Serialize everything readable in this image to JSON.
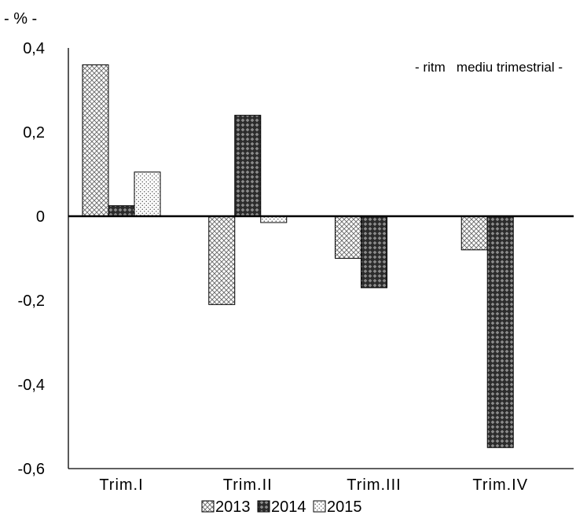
{
  "chart_data": {
    "type": "bar",
    "unit_label": "- % -",
    "annotation": "- ritm   mediu trimestrial -",
    "categories": [
      "Trim.I",
      "Trim.II",
      "Trim.III",
      "Trim.IV"
    ],
    "series": [
      {
        "name": "2013",
        "values": [
          0.36,
          -0.21,
          -0.1,
          -0.08
        ],
        "pattern": "light-diamond"
      },
      {
        "name": "2014",
        "values": [
          0.025,
          0.24,
          -0.17,
          -0.55
        ],
        "pattern": "dark-diamond"
      },
      {
        "name": "2015",
        "values": [
          0.105,
          -0.015,
          null,
          null
        ],
        "pattern": "dotted"
      }
    ],
    "ylim": [
      -0.6,
      0.4
    ],
    "yticks": [
      0.4,
      0.2,
      0,
      -0.2,
      -0.4,
      -0.6
    ],
    "ytick_labels": [
      "0,4",
      "0,2",
      "0",
      "-0,2",
      "-0,4",
      "-0,6"
    ],
    "grid": false,
    "legend_position": "bottom-center"
  }
}
